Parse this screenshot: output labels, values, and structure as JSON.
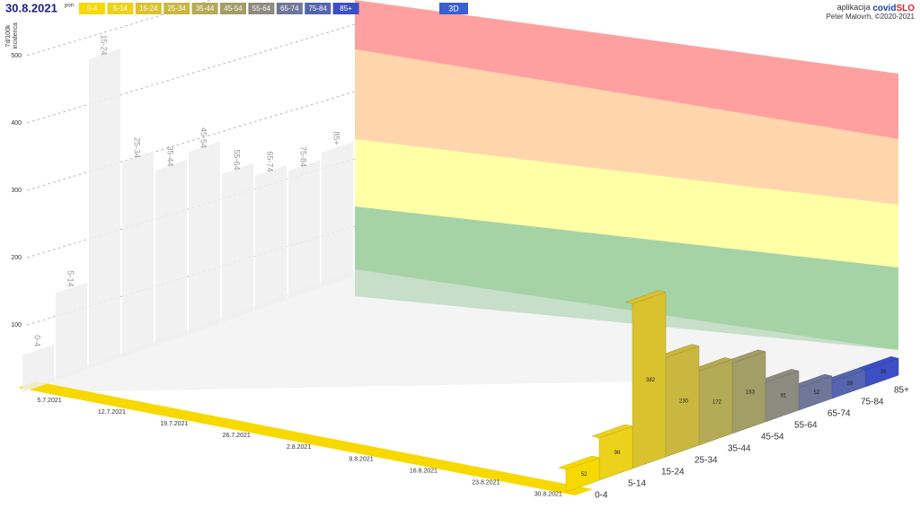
{
  "header": {
    "date": "30.8.2021",
    "day": "pon",
    "mode": "3D",
    "app_prefix": "aplikacija",
    "app_name_1": "covid",
    "app_name_2": "SLO",
    "credit": "Peter Malovrh, ©2020-2021"
  },
  "chart_data": {
    "type": "bar3d",
    "y_label_1": "7d/100k",
    "y_label_2": "incidenca",
    "categories": [
      "0-4",
      "5-14",
      "15-24",
      "25-34",
      "35-44",
      "45-54",
      "55-64",
      "65-74",
      "75-84",
      "85+"
    ],
    "colors": [
      "#f7d900",
      "#ecd21a",
      "#d9c22e",
      "#c9b73f",
      "#b5aa55",
      "#a39d66",
      "#8b8b80",
      "#6f7698",
      "#5565ae",
      "#3c4fc4"
    ],
    "dates": [
      "5.7.2021",
      "12.7.2021",
      "19.7.2021",
      "26.7.2021",
      "2.8.2021",
      "9.8.2021",
      "16.8.2021",
      "23.8.2021",
      "30.8.2021"
    ],
    "values": [
      52,
      98,
      382,
      230,
      172,
      163,
      91,
      52,
      39,
      39
    ],
    "back_values": [
      55,
      130,
      460,
      290,
      260,
      270,
      220,
      200,
      190,
      200
    ],
    "ylim": [
      0,
      550
    ],
    "yticks": [
      100,
      200,
      300,
      400,
      500
    ]
  }
}
